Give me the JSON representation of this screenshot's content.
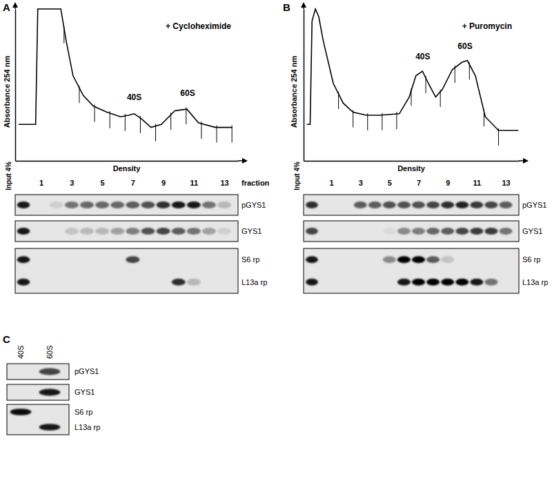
{
  "chart_data": [
    {
      "type": "line",
      "title": "A",
      "subtitle": "+ Cycloheximide",
      "x_label": "Density",
      "y_label": "Absorbance 254 nm",
      "input_label": "Input 4%",
      "fraction_label": "fraction",
      "color": "#000000",
      "tick_labels": "x",
      "xlim": [
        -0.7,
        13.9
      ],
      "xticks": [
        1,
        3,
        5,
        7,
        9,
        11,
        13
      ],
      "ylim": [
        0,
        1
      ],
      "x": [
        -0.47,
        0.64,
        0.78,
        2.29,
        2.64,
        3.09,
        3.76,
        4.42,
        5.31,
        6.2,
        6.73,
        7.09,
        7.53,
        8.2,
        8.87,
        9.76,
        10.55,
        11.31,
        12.42,
        13.53
      ],
      "values": [
        0.24,
        0.24,
        1.0,
        1.0,
        0.79,
        0.56,
        0.43,
        0.36,
        0.32,
        0.29,
        0.3,
        0.31,
        0.28,
        0.22,
        0.24,
        0.33,
        0.34,
        0.25,
        0.22,
        0.22
      ],
      "fraction_boundaries": [
        2.5,
        3.5,
        4.5,
        5.5,
        6.5,
        7.5,
        8.5,
        9.5,
        10.5,
        11.5,
        12.5,
        13.5
      ],
      "annotations": [
        {
          "text": "40S",
          "x": 7.1,
          "y": 0.38
        },
        {
          "text": "60S",
          "x": 10.6,
          "y": 0.41
        }
      ],
      "blots": [
        {
          "rows": [
            {
              "name": "pGYS1",
              "input": 0.9,
              "values": [
                0,
                0.1,
                0.5,
                0.55,
                0.55,
                0.55,
                0.6,
                0.65,
                0.8,
                0.9,
                0.9,
                0.5,
                0.2
              ]
            }
          ]
        },
        {
          "rows": [
            {
              "name": "GYS1",
              "input": 0.9,
              "values": [
                0,
                0,
                0.15,
                0.2,
                0.2,
                0.3,
                0.45,
                0.65,
                0.7,
                0.6,
                0.5,
                0.3,
                0.1
              ]
            }
          ]
        },
        {
          "rows": [
            {
              "name": "S6 rp",
              "input": 0.9,
              "values": [
                0,
                0,
                0,
                0,
                0,
                0,
                0.7,
                0,
                0,
                0,
                0,
                0,
                0
              ]
            },
            {
              "name": "L13a rp",
              "input": 0.9,
              "values": [
                0,
                0,
                0,
                0,
                0,
                0,
                0,
                0,
                0,
                0.8,
                0.2,
                0,
                0
              ]
            }
          ]
        }
      ]
    },
    {
      "type": "line",
      "title": "B",
      "subtitle": "+ Puromycin",
      "x_label": "Density",
      "y_label": "Absorbance 254 nm",
      "input_label": "Input 4%",
      "color": "#000000",
      "tick_labels": "x",
      "xlim": [
        -0.9,
        13.9
      ],
      "xticks": [
        1,
        3,
        5,
        7,
        9,
        11,
        13
      ],
      "ylim": [
        0,
        1
      ],
      "x": [
        -0.68,
        -0.45,
        -0.32,
        -0.09,
        0.14,
        0.45,
        1.14,
        1.82,
        2.5,
        3.41,
        4.32,
        5.68,
        6.36,
        6.82,
        7.27,
        7.73,
        8.18,
        8.64,
        9.32,
        10.0,
        10.36,
        10.91,
        11.59,
        12.5,
        13.86
      ],
      "values": [
        0.24,
        0.24,
        0.92,
        1.0,
        0.95,
        0.79,
        0.51,
        0.38,
        0.32,
        0.3,
        0.3,
        0.31,
        0.42,
        0.56,
        0.59,
        0.5,
        0.42,
        0.47,
        0.6,
        0.65,
        0.66,
        0.56,
        0.29,
        0.2,
        0.2
      ],
      "fraction_boundaries": [
        1.5,
        2.5,
        3.5,
        4.5,
        5.5,
        6.5,
        7.5,
        8.5,
        9.5,
        10.5,
        11.5,
        12.5
      ],
      "annotations": [
        {
          "text": "40S",
          "x": 7.3,
          "y": 0.65
        },
        {
          "text": "60S",
          "x": 10.2,
          "y": 0.72
        }
      ],
      "blots": [
        {
          "rows": [
            {
              "name": "pGYS1",
              "input": 0.8,
              "values": [
                0,
                0,
                0.6,
                0.6,
                0.65,
                0.65,
                0.65,
                0.7,
                0.8,
                0.85,
                0.75,
                0.7,
                0.6
              ]
            }
          ]
        },
        {
          "rows": [
            {
              "name": "GYS1",
              "input": 0.7,
              "values": [
                0,
                0,
                0,
                0,
                0.05,
                0.4,
                0.45,
                0.55,
                0.6,
                0.7,
                0.75,
                0.75,
                0.5
              ]
            }
          ]
        },
        {
          "rows": [
            {
              "name": "S6 rp",
              "input": 0.9,
              "values": [
                0,
                0,
                0,
                0,
                0.4,
                1,
                1,
                0.6,
                0.15,
                0,
                0,
                0,
                0
              ]
            },
            {
              "name": "L13a rp",
              "input": 0.9,
              "values": [
                0,
                0,
                0,
                0,
                0,
                0.9,
                1,
                1,
                1,
                1,
                0.9,
                0.5,
                0
              ]
            }
          ]
        }
      ]
    },
    {
      "type": "blot",
      "title": "C",
      "lanes": [
        "40S",
        "60S"
      ],
      "blots": [
        {
          "rows": [
            {
              "name": "pGYS1",
              "values": [
                0,
                0.7
              ]
            }
          ]
        },
        {
          "rows": [
            {
              "name": "GYS1",
              "values": [
                0,
                0.9
              ]
            }
          ]
        },
        {
          "rows": [
            {
              "name": "S6 rp",
              "values": [
                0.95,
                0
              ]
            },
            {
              "name": "L13a rp",
              "values": [
                0,
                0.9
              ]
            }
          ]
        }
      ]
    }
  ]
}
